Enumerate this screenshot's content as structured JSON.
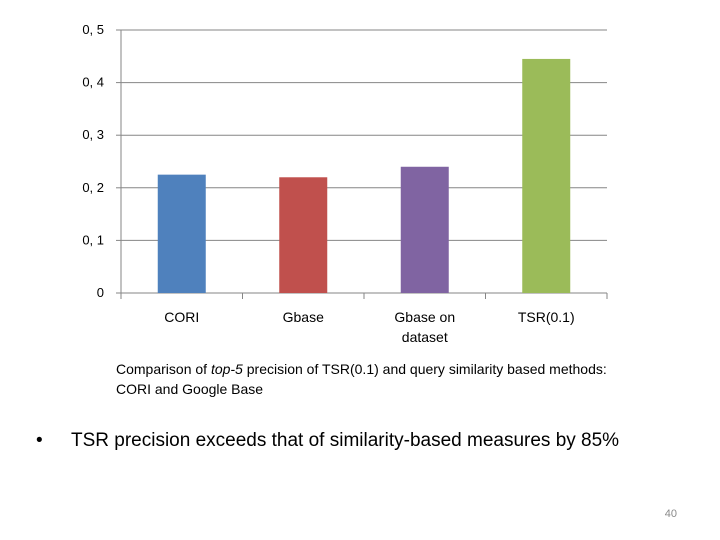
{
  "chart_data": {
    "type": "bar",
    "categories": [
      "CORI",
      "Gbase",
      "Gbase on dataset",
      "TSR(0.1)"
    ],
    "category_lines": [
      [
        "CORI"
      ],
      [
        "Gbase"
      ],
      [
        "Gbase on",
        "dataset"
      ],
      [
        "TSR(0.1)"
      ]
    ],
    "values": [
      0.225,
      0.22,
      0.24,
      0.445
    ],
    "colors": [
      "#4f81bd",
      "#c0504d",
      "#8064a2",
      "#9bbb59"
    ],
    "yticks": [
      0,
      0.1,
      0.2,
      0.3,
      0.4,
      0.5
    ],
    "ytick_labels": [
      "0",
      "0, 1",
      "0, 2",
      "0, 3",
      "0, 4",
      "0, 5"
    ],
    "ylim": [
      0,
      0.5
    ],
    "grid": true,
    "gridline_color": "#868686",
    "title": "",
    "xlabel": "",
    "ylabel": ""
  },
  "caption": {
    "prefix": "Comparison of ",
    "italic": "top-5",
    "suffix": " precision of TSR(0.1) and query similarity based methods: CORI and Google Base"
  },
  "bullet": {
    "marker": "•",
    "text": "TSR precision exceeds that of similarity-based measures by 85%"
  },
  "page_number": "40"
}
